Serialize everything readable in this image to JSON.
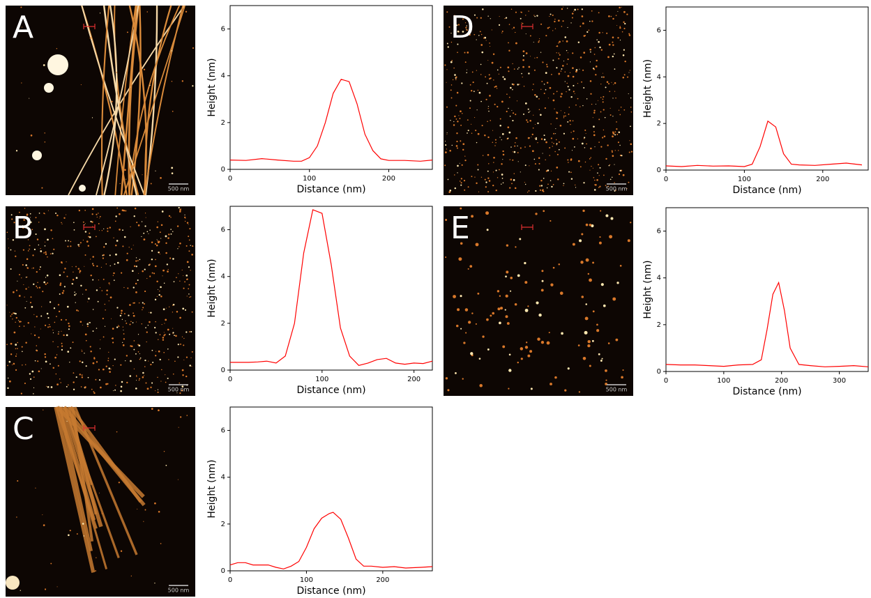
{
  "chart_data": [
    {
      "type": "line",
      "panel": "A",
      "scale_bar": "500 nm",
      "xlabel": "Distance (nm)",
      "ylabel": "Height (nm)",
      "x": [
        0,
        20,
        40,
        60,
        80,
        90,
        100,
        110,
        120,
        130,
        140,
        150,
        160,
        170,
        180,
        190,
        200,
        220,
        240,
        255
      ],
      "values": [
        0.4,
        0.38,
        0.46,
        0.4,
        0.35,
        0.35,
        0.5,
        1.0,
        2.0,
        3.25,
        3.85,
        3.75,
        2.8,
        1.5,
        0.8,
        0.45,
        0.38,
        0.38,
        0.35,
        0.4
      ],
      "color": "#ff0000",
      "xlim": [
        0,
        255
      ],
      "ylim": [
        0,
        7
      ],
      "xticks": [
        0,
        100,
        200
      ],
      "yticks": [
        0,
        2,
        4,
        6
      ]
    },
    {
      "type": "line",
      "panel": "B",
      "scale_bar": "500 nm",
      "xlabel": "Distance (nm)",
      "ylabel": "Height (nm)",
      "x": [
        0,
        20,
        30,
        40,
        50,
        60,
        70,
        80,
        90,
        100,
        110,
        120,
        130,
        140,
        150,
        160,
        170,
        180,
        190,
        200,
        210,
        220
      ],
      "values": [
        0.33,
        0.33,
        0.35,
        0.38,
        0.3,
        0.6,
        2.0,
        5.0,
        6.85,
        6.7,
        4.5,
        1.8,
        0.6,
        0.2,
        0.3,
        0.45,
        0.5,
        0.3,
        0.25,
        0.3,
        0.28,
        0.38
      ],
      "color": "#ff0000",
      "xlim": [
        0,
        220
      ],
      "ylim": [
        0,
        7
      ],
      "xticks": [
        0,
        100,
        200
      ],
      "yticks": [
        0,
        2,
        4,
        6
      ]
    },
    {
      "type": "line",
      "panel": "C",
      "scale_bar": "500 nm",
      "xlabel": "Distance (nm)",
      "ylabel": "Height (nm)",
      "x": [
        0,
        10,
        20,
        30,
        40,
        50,
        60,
        70,
        80,
        90,
        100,
        110,
        120,
        130,
        135,
        145,
        155,
        165,
        175,
        185,
        200,
        215,
        230,
        250,
        265
      ],
      "values": [
        0.25,
        0.35,
        0.35,
        0.25,
        0.25,
        0.25,
        0.15,
        0.08,
        0.2,
        0.4,
        1.0,
        1.8,
        2.25,
        2.45,
        2.5,
        2.2,
        1.4,
        0.5,
        0.2,
        0.2,
        0.15,
        0.18,
        0.12,
        0.15,
        0.18
      ],
      "color": "#ff0000",
      "xlim": [
        0,
        265
      ],
      "ylim": [
        0,
        7
      ],
      "xticks": [
        0,
        100,
        200
      ],
      "yticks": [
        0,
        2,
        4,
        6
      ]
    },
    {
      "type": "line",
      "panel": "D",
      "scale_bar": "500 nm",
      "xlabel": "Distance (nm)",
      "ylabel": "Height (nm)",
      "x": [
        0,
        20,
        40,
        60,
        80,
        100,
        110,
        120,
        130,
        140,
        150,
        160,
        170,
        190,
        210,
        230,
        250
      ],
      "values": [
        0.18,
        0.15,
        0.2,
        0.17,
        0.18,
        0.15,
        0.25,
        1.0,
        2.1,
        1.85,
        0.7,
        0.25,
        0.22,
        0.2,
        0.25,
        0.3,
        0.22
      ],
      "color": "#ff0000",
      "xlim": [
        0,
        258
      ],
      "ylim": [
        0,
        7
      ],
      "xticks": [
        0,
        100,
        200
      ],
      "yticks": [
        0,
        2,
        4,
        6
      ]
    },
    {
      "type": "line",
      "panel": "E",
      "scale_bar": "500 nm",
      "xlabel": "Distance (nm)",
      "ylabel": "Height (nm)",
      "x": [
        0,
        25,
        50,
        75,
        100,
        125,
        150,
        165,
        175,
        185,
        195,
        205,
        215,
        230,
        250,
        275,
        300,
        325,
        350
      ],
      "values": [
        0.3,
        0.28,
        0.28,
        0.25,
        0.22,
        0.28,
        0.3,
        0.5,
        1.8,
        3.3,
        3.8,
        2.6,
        1.0,
        0.3,
        0.25,
        0.2,
        0.22,
        0.25,
        0.2
      ],
      "color": "#ff0000",
      "xlim": [
        0,
        350
      ],
      "ylim": [
        0,
        7
      ],
      "xticks": [
        0,
        100,
        200,
        300
      ],
      "yticks": [
        0,
        2,
        4,
        6
      ]
    }
  ]
}
